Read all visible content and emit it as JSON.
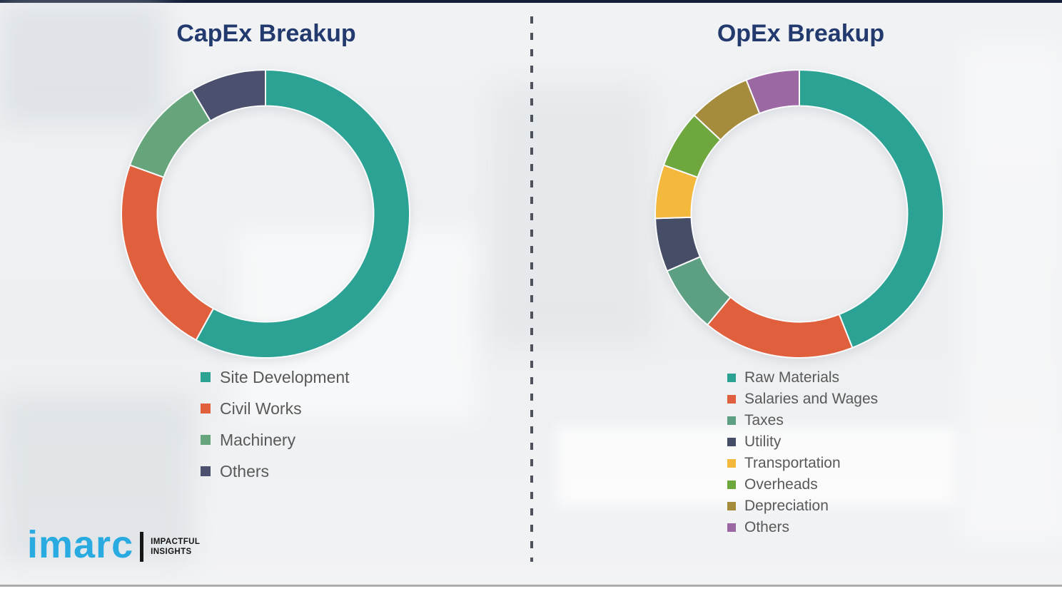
{
  "page": {
    "background_color": "#eff1f3",
    "top_border_color": "#141f39",
    "divider_style": "vertical-dashed",
    "divider_color": "#4d525c"
  },
  "chart_data": [
    {
      "type": "pie",
      "subtype": "donut",
      "title": "CapEx Breakup",
      "title_color": "#233a6e",
      "categories": [
        "Site Development",
        "Civil Works",
        "Machinery",
        "Others"
      ],
      "values": [
        58,
        22.5,
        11,
        8.5
      ],
      "unit": "percent-estimated-from-arc-angles",
      "colors": [
        "#2ba293",
        "#e05f3c",
        "#66a47b",
        "#4b506e"
      ],
      "inner_ratio": 0.75,
      "start_angle_deg": 0,
      "direction": "clockwise",
      "segment_gap_color": "#fafbfc",
      "legend_position": "below-left"
    },
    {
      "type": "pie",
      "subtype": "donut",
      "title": "OpEx Breakup",
      "title_color": "#233a6e",
      "categories": [
        "Raw Materials",
        "Salaries and Wages",
        "Taxes",
        "Utility",
        "Transportation",
        "Overheads",
        "Depreciation",
        "Others"
      ],
      "values": [
        44,
        17,
        7.5,
        6,
        6,
        6.5,
        7,
        6
      ],
      "unit": "percent-estimated-from-arc-angles",
      "colors": [
        "#2ba293",
        "#e05f3c",
        "#5d9f82",
        "#464d66",
        "#f3b83c",
        "#6da73e",
        "#a48c3c",
        "#9b68a4"
      ],
      "inner_ratio": 0.75,
      "start_angle_deg": 0,
      "direction": "clockwise",
      "segment_gap_color": "#fafbfc",
      "legend_position": "below-left"
    }
  ],
  "logo": {
    "brand": "imarc",
    "brand_color": "#29abe2",
    "tagline_line1": "IMPACTFUL",
    "tagline_line2": "INSIGHTS"
  }
}
